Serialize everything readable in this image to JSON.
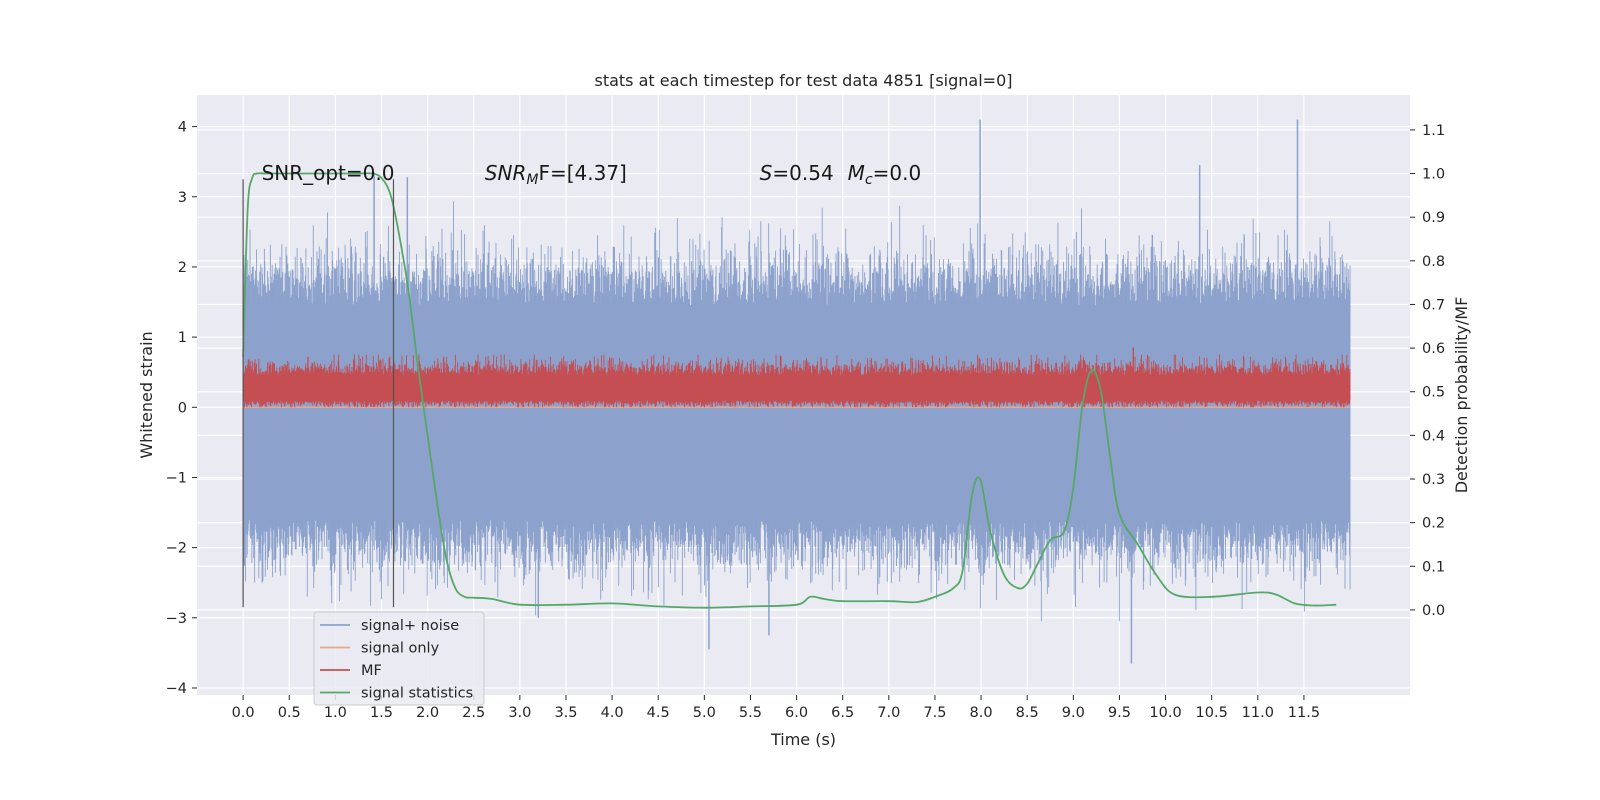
{
  "chart_data": {
    "type": "line",
    "title": "stats at each timestep for test data 4851 [signal=0]",
    "xlabel": "Time (s)",
    "ylabel": "Whitened strain",
    "y2label": "Detection probability/MF",
    "xlim": [
      -0.5,
      12.65
    ],
    "ylim": [
      -4.1,
      4.45
    ],
    "y2lim": [
      -0.195,
      1.18
    ],
    "grid": true,
    "legend_position": "lower-left",
    "x_ticks": [
      "0.0",
      "0.5",
      "1.0",
      "1.5",
      "2.0",
      "2.5",
      "3.0",
      "3.5",
      "4.0",
      "4.5",
      "5.0",
      "5.5",
      "6.0",
      "6.5",
      "7.0",
      "7.5",
      "8.0",
      "8.5",
      "9.0",
      "9.5",
      "10.0",
      "10.5",
      "11.0",
      "11.5"
    ],
    "y_ticks": [
      "4",
      "3",
      "2",
      "1",
      "0",
      "−1",
      "−2",
      "−3",
      "−4"
    ],
    "y2_ticks": [
      "1.1",
      "1.0",
      "0.9",
      "0.8",
      "0.7",
      "0.6",
      "0.5",
      "0.4",
      "0.3",
      "0.2",
      "0.1",
      "0.0"
    ],
    "annotations": {
      "snr_opt": "SNR_opt=0.0",
      "snr_mf_sym": "SNR",
      "snr_mf_sub": "M",
      "snr_mf_rest": "F=[4.37]",
      "s_sym": "S",
      "s_val": "=0.54",
      "mc_sym": "M",
      "mc_sub": "c",
      "mc_val": "=0.0"
    },
    "window_markers": {
      "x": [
        0.0,
        1.63
      ],
      "y_range": [
        -2.85,
        3.25
      ]
    },
    "series": [
      {
        "name": "signal+ noise",
        "color": "#8ca2cc",
        "axis": "left",
        "x_range": [
          0.0,
          12.0
        ],
        "band": [
          -1.6,
          1.45
        ],
        "typical_peak": [
          -2.4,
          2.3
        ],
        "spikes": [
          {
            "x": 7.99,
            "y": 4.1
          },
          {
            "x": 11.43,
            "y": 4.1
          },
          {
            "x": 9.63,
            "y": -3.65
          },
          {
            "x": 5.05,
            "y": -3.45
          },
          {
            "x": 3.2,
            "y": -3.0
          },
          {
            "x": 5.7,
            "y": -3.25
          },
          {
            "x": 1.42,
            "y": 3.35
          },
          {
            "x": 1.78,
            "y": 3.28
          },
          {
            "x": 10.37,
            "y": 3.45
          }
        ]
      },
      {
        "name": "signal only",
        "color": "#e9a68a",
        "axis": "left",
        "x": [
          0.0,
          12.0
        ],
        "y": [
          0.0,
          0.0
        ]
      },
      {
        "name": "MF",
        "color": "#c44e52",
        "axis": "left",
        "x_range": [
          0.0,
          12.0
        ],
        "band": [
          0.1,
          0.45
        ],
        "extremes": [
          0.0,
          0.85
        ]
      },
      {
        "name": "signal statistics",
        "color": "#55a868",
        "axis": "right",
        "x": [
          0.0,
          0.05,
          0.1,
          0.15,
          0.25,
          0.5,
          0.75,
          1.0,
          1.25,
          1.4,
          1.5,
          1.6,
          1.7,
          1.8,
          1.9,
          2.0,
          2.1,
          2.2,
          2.3,
          2.4,
          2.5,
          2.7,
          3.0,
          3.5,
          4.0,
          4.5,
          5.0,
          5.5,
          6.0,
          6.15,
          6.3,
          6.5,
          7.0,
          7.3,
          7.5,
          7.7,
          7.8,
          7.9,
          7.99,
          8.1,
          8.25,
          8.4,
          8.5,
          8.6,
          8.75,
          8.9,
          9.0,
          9.1,
          9.2,
          9.3,
          9.4,
          9.5,
          9.7,
          9.9,
          10.1,
          10.5,
          11.0,
          11.2,
          11.4,
          11.6,
          11.85
        ],
        "y": [
          0.58,
          0.92,
          0.99,
          1.0,
          1.0,
          1.0,
          1.0,
          1.0,
          1.0,
          1.0,
          0.99,
          0.95,
          0.85,
          0.72,
          0.55,
          0.4,
          0.25,
          0.12,
          0.05,
          0.03,
          0.028,
          0.025,
          0.012,
          0.012,
          0.015,
          0.008,
          0.005,
          0.008,
          0.012,
          0.03,
          0.025,
          0.02,
          0.02,
          0.018,
          0.03,
          0.05,
          0.09,
          0.26,
          0.3,
          0.18,
          0.08,
          0.05,
          0.06,
          0.1,
          0.16,
          0.18,
          0.28,
          0.47,
          0.55,
          0.5,
          0.35,
          0.22,
          0.15,
          0.08,
          0.035,
          0.03,
          0.04,
          0.035,
          0.015,
          0.01,
          0.012
        ]
      }
    ]
  }
}
